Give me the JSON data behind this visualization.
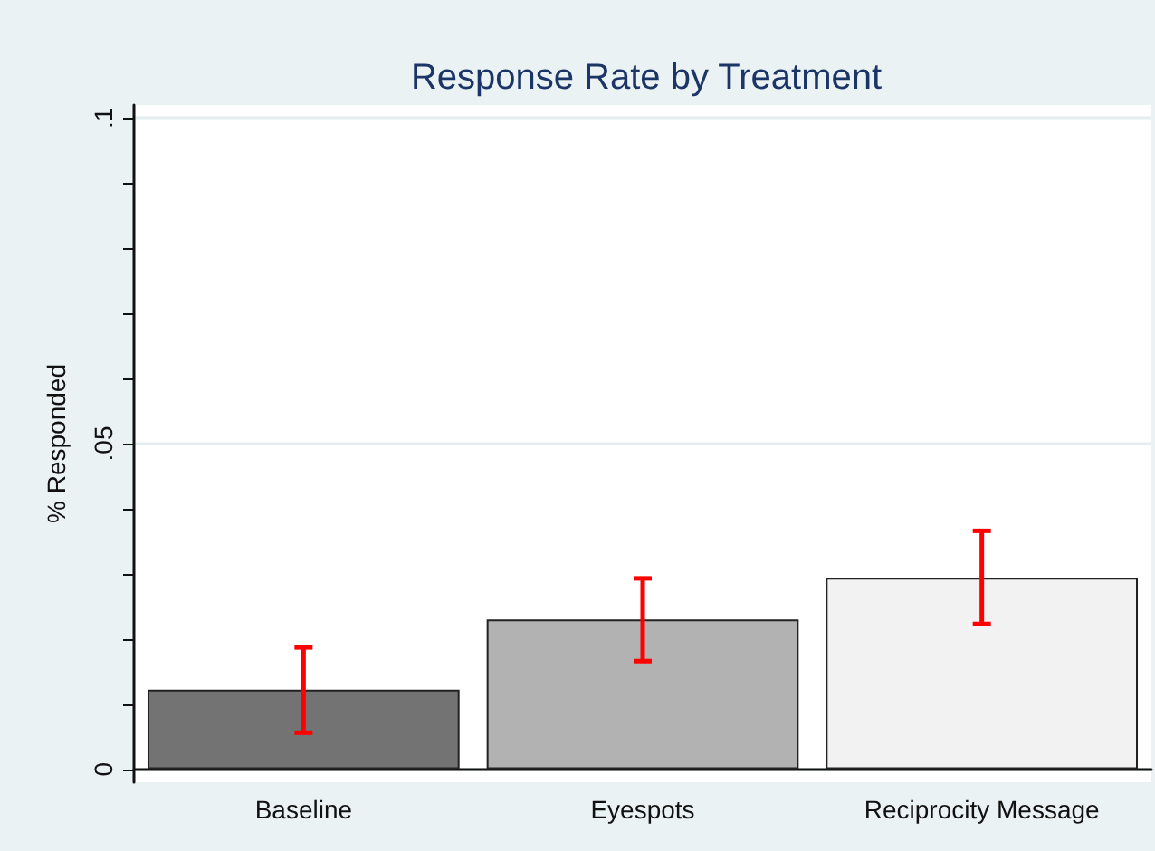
{
  "chart_data": {
    "type": "bar",
    "title": "Response Rate by Treatment",
    "ylabel": "% Responded",
    "categories": [
      "Baseline",
      "Eyespots",
      "Reciprocity Message"
    ],
    "values": [
      0.0122,
      0.023,
      0.0294
    ],
    "colors": [
      "#737373",
      "#b2b2b2",
      "#f2f2f2"
    ],
    "errors": [
      [
        0.0056,
        0.0187
      ],
      [
        0.0166,
        0.0293
      ],
      [
        0.0223,
        0.0366
      ]
    ],
    "ylim": [
      -0.002,
      0.102
    ],
    "yticks": [
      {
        "value": 0,
        "label": "0"
      },
      {
        "value": 0.01,
        "label": null
      },
      {
        "value": 0.02,
        "label": null
      },
      {
        "value": 0.03,
        "label": null
      },
      {
        "value": 0.04,
        "label": null
      },
      {
        "value": 0.05,
        "label": ".05"
      },
      {
        "value": 0.06,
        "label": null
      },
      {
        "value": 0.07,
        "label": null
      },
      {
        "value": 0.08,
        "label": null
      },
      {
        "value": 0.09,
        "label": null
      },
      {
        "value": 0.1,
        "label": ".1"
      }
    ],
    "grid": "y"
  }
}
